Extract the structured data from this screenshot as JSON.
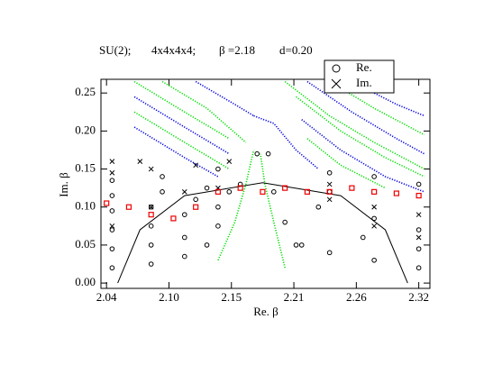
{
  "chart_data": {
    "type": "scatter",
    "title_parts": [
      "SU(2);",
      "4x4x4x4;",
      "β =2.18",
      "d=0.20"
    ],
    "x_label": "Re. β",
    "y_label": "Im. β",
    "legend": [
      {
        "label": "Re.",
        "marker": "circle"
      },
      {
        "label": "Im.",
        "marker": "x"
      }
    ],
    "legend_position": "upper-right",
    "xlim": [
      2.035,
      2.33
    ],
    "ylim": [
      -0.007,
      0.268
    ],
    "xticks": [
      2.04,
      {
        "value": 2.096,
        "label": "2.10"
      },
      {
        "value": 2.152,
        "label": "2.15"
      },
      {
        "value": 2.208,
        "label": "2.21"
      },
      {
        "value": 2.264,
        "label": "2.26"
      },
      2.32
    ],
    "yticks": [
      {
        "value": 0,
        "label": "0.00"
      },
      0.05,
      {
        "value": 0.1,
        "label": "0.10"
      },
      0.15,
      {
        "value": 0.2,
        "label": "0.20"
      },
      0.25
    ],
    "series": [
      {
        "marker": "dot",
        "color": "#00dd00",
        "x": [
          2.065,
          2.11,
          2.15
        ],
        "values": [
          0.265,
          0.225,
          0.19
        ]
      },
      {
        "marker": "dot",
        "color": "#0000dd",
        "x": [
          2.065,
          2.11,
          2.15
        ],
        "values": [
          0.245,
          0.205,
          0.17
        ]
      },
      {
        "marker": "dot",
        "color": "#00dd00",
        "x": [
          2.065,
          2.11,
          2.15
        ],
        "values": [
          0.225,
          0.185,
          0.15
        ]
      },
      {
        "marker": "dot",
        "color": "#0000dd",
        "x": [
          2.065,
          2.11,
          2.14
        ],
        "values": [
          0.205,
          0.165,
          0.14
        ]
      },
      {
        "marker": "dot",
        "color": "#00dd00",
        "x": [
          2.09,
          2.13,
          2.165
        ],
        "values": [
          0.265,
          0.23,
          0.185
        ]
      },
      {
        "marker": "dot",
        "color": "#0000dd",
        "x": [
          2.12,
          2.155,
          2.172
        ],
        "values": [
          0.265,
          0.235,
          0.22
        ]
      },
      {
        "marker": "dot",
        "color": "#0000dd",
        "x": [
          2.172,
          2.19,
          2.21,
          2.23
        ],
        "values": [
          0.22,
          0.21,
          0.175,
          0.15
        ]
      },
      {
        "marker": "dot",
        "color": "#00dd00",
        "x": [
          2.2,
          2.24,
          2.28,
          2.325
        ],
        "values": [
          0.265,
          0.22,
          0.185,
          0.15
        ]
      },
      {
        "marker": "dot",
        "color": "#0000dd",
        "x": [
          2.22,
          2.26,
          2.3,
          2.325
        ],
        "values": [
          0.265,
          0.225,
          0.19,
          0.17
        ]
      },
      {
        "marker": "dot",
        "color": "#00dd00",
        "x": [
          2.24,
          2.28,
          2.325
        ],
        "values": [
          0.265,
          0.23,
          0.195
        ]
      },
      {
        "marker": "dot",
        "color": "#0000dd",
        "x": [
          2.26,
          2.3,
          2.325
        ],
        "values": [
          0.265,
          0.235,
          0.22
        ]
      },
      {
        "marker": "dot",
        "color": "#00dd00",
        "x": [
          2.21,
          2.25,
          2.29,
          2.325
        ],
        "values": [
          0.245,
          0.2,
          0.165,
          0.14
        ]
      },
      {
        "marker": "dot",
        "color": "#0000dd",
        "x": [
          2.215,
          2.25,
          2.29,
          2.325
        ],
        "values": [
          0.215,
          0.175,
          0.14,
          0.12
        ]
      },
      {
        "marker": "dot",
        "color": "#00dd00",
        "x": [
          2.22,
          2.25,
          2.29
        ],
        "values": [
          0.19,
          0.155,
          0.125
        ]
      },
      {
        "marker": "dot",
        "color": "#00dd00",
        "x": [
          2.14,
          2.155,
          2.165,
          2.172
        ],
        "values": [
          0.03,
          0.08,
          0.13,
          0.175
        ]
      },
      {
        "marker": "dot",
        "color": "#00dd00",
        "x": [
          2.2,
          2.19,
          2.182,
          2.178
        ],
        "values": [
          0.02,
          0.08,
          0.13,
          0.17
        ]
      },
      {
        "marker": "line",
        "color": "#000000",
        "x": [
          2.05,
          2.07,
          2.11,
          2.18,
          2.25,
          2.29,
          2.31
        ],
        "values": [
          0,
          0.07,
          0.115,
          0.132,
          0.115,
          0.07,
          0
        ]
      },
      {
        "marker": "circle",
        "color": "#000000",
        "x": [
          2.045,
          2.08,
          2.11,
          2.13
        ],
        "values": [
          0.02,
          0.025,
          0.035,
          0.05
        ]
      },
      {
        "marker": "circle",
        "color": "#000000",
        "x": [
          2.045,
          2.08,
          2.11,
          2.14
        ],
        "values": [
          0.045,
          0.05,
          0.06,
          0.075
        ]
      },
      {
        "marker": "circle",
        "color": "#000000",
        "x": [
          2.045,
          2.08,
          2.11,
          2.14
        ],
        "values": [
          0.07,
          0.075,
          0.09,
          0.1
        ]
      },
      {
        "marker": "circle",
        "color": "#000000",
        "x": [
          2.045,
          2.08,
          2.12,
          2.15
        ],
        "values": [
          0.095,
          0.1,
          0.11,
          0.12
        ]
      },
      {
        "marker": "circle",
        "color": "#000000",
        "x": [
          2.045,
          2.09,
          2.13,
          2.16
        ],
        "values": [
          0.115,
          0.12,
          0.125,
          0.13
        ]
      },
      {
        "marker": "circle",
        "color": "#000000",
        "x": [
          2.045,
          2.09,
          2.14,
          2.175
        ],
        "values": [
          0.135,
          0.14,
          0.15,
          0.17
        ]
      },
      {
        "marker": "circle",
        "color": "#000000",
        "x": [
          2.24,
          2.28,
          2.32
        ],
        "values": [
          0.12,
          0.085,
          0.07
        ]
      },
      {
        "marker": "circle",
        "color": "#000000",
        "x": [
          2.23,
          2.27,
          2.32
        ],
        "values": [
          0.1,
          0.06,
          0.045
        ]
      },
      {
        "marker": "circle",
        "color": "#000000",
        "x": [
          2.21,
          2.24,
          2.28,
          2.32
        ],
        "values": [
          0.05,
          0.04,
          0.03,
          0.02
        ]
      },
      {
        "marker": "circle",
        "color": "#000000",
        "x": [
          2.185,
          2.19,
          2.2,
          2.215
        ],
        "values": [
          0.17,
          0.12,
          0.08,
          0.05
        ]
      },
      {
        "marker": "circle",
        "color": "#000000",
        "x": [
          2.24,
          2.28,
          2.32
        ],
        "values": [
          0.145,
          0.14,
          0.13
        ]
      },
      {
        "marker": "x",
        "color": "#000000",
        "x": [
          2.045,
          2.07
        ],
        "values": [
          0.16,
          0.16
        ]
      },
      {
        "marker": "x",
        "color": "#000000",
        "x": [
          2.045,
          2.08,
          2.12,
          2.15
        ],
        "values": [
          0.145,
          0.15,
          0.155,
          0.16
        ]
      },
      {
        "marker": "x",
        "color": "#000000",
        "x": [
          2.045,
          2.08,
          2.11,
          2.14
        ],
        "values": [
          0.075,
          0.1,
          0.12,
          0.125
        ]
      },
      {
        "marker": "x",
        "color": "#000000",
        "x": [
          2.24,
          2.28,
          2.32
        ],
        "values": [
          0.13,
          0.1,
          0.09
        ]
      },
      {
        "marker": "x",
        "color": "#000000",
        "x": [
          2.24,
          2.28,
          2.32
        ],
        "values": [
          0.11,
          0.075,
          0.06
        ]
      },
      {
        "marker": "square",
        "color": "#ee0000",
        "x": [
          2.04,
          2.06,
          2.08,
          2.1,
          2.12,
          2.14,
          2.16,
          2.18,
          2.2,
          2.22,
          2.24,
          2.26,
          2.28,
          2.3,
          2.32
        ],
        "values": [
          0.105,
          0.1,
          0.09,
          0.085,
          0.1,
          0.12,
          0.125,
          0.12,
          0.125,
          0.12,
          0.12,
          0.125,
          0.12,
          0.118,
          0.115
        ]
      }
    ]
  }
}
